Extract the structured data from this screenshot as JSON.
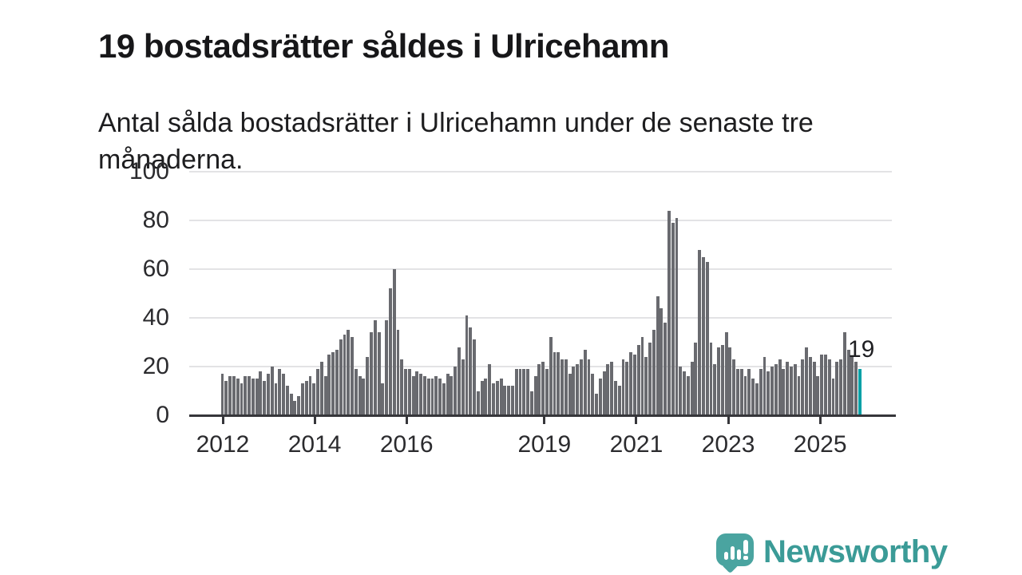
{
  "header": {
    "title": "19 bostadsrätter såldes i Ulricehamn",
    "subtitle": "Antal sålda bostadsrätter i Ulricehamn under de senaste tre månaderna."
  },
  "annotation": {
    "latest_value_label": "19"
  },
  "footer": {
    "brand": "Newsworthy",
    "logo_icon": "speech-bubble-bar-chart-icon"
  },
  "colors": {
    "bar": "#696a6f",
    "highlight_bar": "#00a0a6",
    "axis": "#36363a",
    "gridline": "#e3e3e5",
    "brand_teal": "#4aa4a0"
  },
  "chart_data": {
    "type": "bar",
    "title": "19 bostadsrätter såldes i Ulricehamn",
    "subtitle": "Antal sålda bostadsrätter i Ulricehamn under de senaste tre månaderna.",
    "frequency": "monthly",
    "start": "2012-01",
    "xlabel": "",
    "ylabel": "",
    "ylim": [
      0,
      100
    ],
    "grid": true,
    "y_ticks": [
      0,
      20,
      40,
      60,
      80,
      100
    ],
    "x_tick_years": [
      2012,
      2014,
      2016,
      2019,
      2021,
      2023,
      2025
    ],
    "x_tick_labels": [
      "2012",
      "2014",
      "2016",
      "2019",
      "2021",
      "2023",
      "2025"
    ],
    "highlight": {
      "index": 167,
      "value": 19,
      "label": "19"
    },
    "series": [
      {
        "name": "Antal sålda bostadsrätter, rullande 3 månader",
        "values": [
          17,
          14,
          16,
          16,
          15,
          13,
          16,
          16,
          15,
          15,
          18,
          14,
          17,
          20,
          13,
          19,
          17,
          12,
          9,
          6,
          8,
          13,
          14,
          16,
          13,
          19,
          22,
          16,
          25,
          26,
          27,
          31,
          33,
          35,
          32,
          19,
          16,
          15,
          24,
          34,
          39,
          34,
          13,
          39,
          52,
          60,
          35,
          23,
          19,
          19,
          16,
          18,
          17,
          16,
          15,
          15,
          16,
          15,
          13,
          17,
          16,
          20,
          28,
          23,
          41,
          36,
          31,
          10,
          14,
          15,
          21,
          13,
          14,
          15,
          12,
          12,
          12,
          19,
          19,
          19,
          19,
          10,
          16,
          21,
          22,
          19,
          32,
          26,
          26,
          23,
          23,
          17,
          20,
          21,
          23,
          27,
          23,
          17,
          9,
          15,
          18,
          21,
          22,
          14,
          12,
          23,
          22,
          26,
          25,
          29,
          32,
          24,
          30,
          35,
          49,
          44,
          38,
          84,
          79,
          81,
          20,
          18,
          16,
          22,
          30,
          68,
          65,
          63,
          30,
          21,
          28,
          29,
          34,
          28,
          23,
          19,
          19,
          16,
          19,
          15,
          13,
          19,
          24,
          18,
          20,
          21,
          23,
          19,
          22,
          20,
          21,
          16,
          23,
          28,
          24,
          22,
          16,
          25,
          25,
          23,
          15,
          22,
          23,
          34,
          27,
          24,
          22,
          19
        ]
      }
    ]
  }
}
